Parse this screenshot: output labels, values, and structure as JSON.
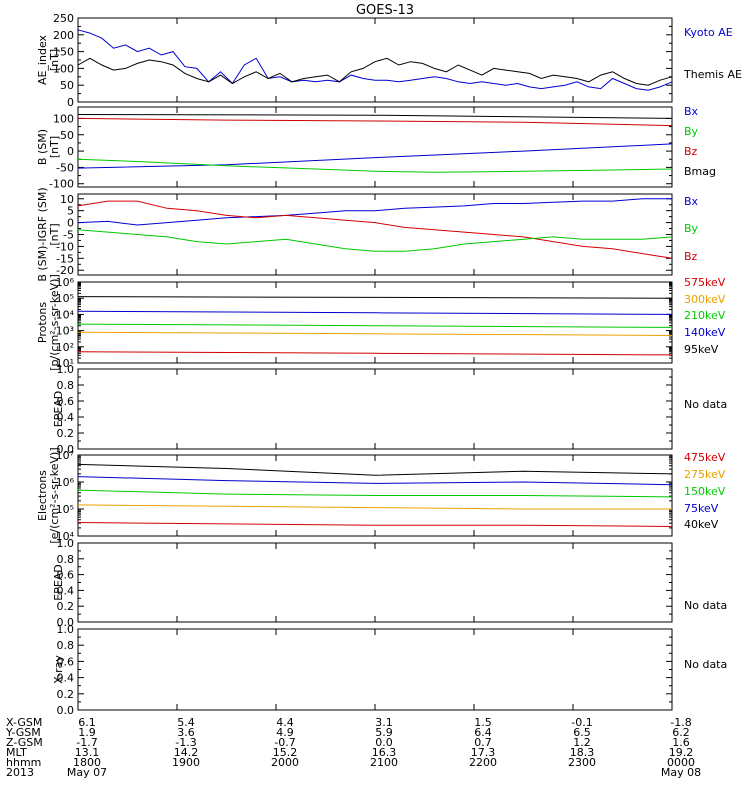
{
  "title": "GOES-13",
  "colors": {
    "black": "#000000",
    "blue": "#0000d0",
    "red": "#d00000",
    "green": "#00c800",
    "orange": "#e8a000"
  },
  "chart_data": [
    {
      "id": "ae",
      "type": "line",
      "ylabel": "AE_index\n[nT]",
      "ylim": [
        0,
        250
      ],
      "yticks": [
        "0",
        "50",
        "100",
        "150",
        "200",
        "250"
      ],
      "yvals": [
        0,
        50,
        100,
        150,
        200,
        250
      ],
      "legend": [
        {
          "name": "Kyoto AE",
          "color": "blue"
        },
        {
          "name": "Themis AE",
          "color": "black"
        }
      ],
      "series": [
        {
          "name": "Kyoto AE",
          "color": "blue",
          "x": [
            0,
            0.02,
            0.04,
            0.06,
            0.08,
            0.1,
            0.12,
            0.14,
            0.16,
            0.18,
            0.2,
            0.22,
            0.24,
            0.26,
            0.28,
            0.3,
            0.32,
            0.34,
            0.36,
            0.38,
            0.4,
            0.42,
            0.44,
            0.46,
            0.48,
            0.5,
            0.52,
            0.54,
            0.56,
            0.58,
            0.6,
            0.62,
            0.64,
            0.66,
            0.68,
            0.7,
            0.72,
            0.74,
            0.76,
            0.78,
            0.8,
            0.82,
            0.84,
            0.86,
            0.88,
            0.9,
            0.92,
            0.94,
            0.96,
            0.98,
            1.0
          ],
          "y": [
            215,
            205,
            190,
            160,
            170,
            150,
            160,
            140,
            150,
            105,
            100,
            60,
            90,
            55,
            110,
            130,
            70,
            75,
            60,
            65,
            60,
            65,
            60,
            80,
            70,
            65,
            65,
            60,
            65,
            70,
            75,
            70,
            60,
            55,
            60,
            55,
            50,
            55,
            45,
            40,
            45,
            50,
            60,
            45,
            40,
            70,
            55,
            40,
            35,
            45,
            60
          ]
        },
        {
          "name": "Themis AE",
          "color": "black",
          "x": [
            0,
            0.02,
            0.04,
            0.06,
            0.08,
            0.1,
            0.12,
            0.14,
            0.16,
            0.18,
            0.2,
            0.22,
            0.24,
            0.26,
            0.28,
            0.3,
            0.32,
            0.34,
            0.36,
            0.38,
            0.4,
            0.42,
            0.44,
            0.46,
            0.48,
            0.5,
            0.52,
            0.54,
            0.56,
            0.58,
            0.6,
            0.62,
            0.64,
            0.66,
            0.68,
            0.7,
            0.72,
            0.74,
            0.76,
            0.78,
            0.8,
            0.82,
            0.84,
            0.86,
            0.88,
            0.9,
            0.92,
            0.94,
            0.96,
            0.98,
            1.0
          ],
          "y": [
            110,
            130,
            110,
            95,
            100,
            115,
            125,
            120,
            110,
            85,
            70,
            60,
            80,
            55,
            75,
            90,
            70,
            85,
            60,
            70,
            75,
            80,
            60,
            90,
            100,
            120,
            130,
            110,
            120,
            115,
            100,
            90,
            110,
            95,
            80,
            100,
            95,
            90,
            85,
            70,
            80,
            75,
            70,
            60,
            80,
            90,
            70,
            55,
            50,
            65,
            75
          ]
        }
      ]
    },
    {
      "id": "bsm",
      "type": "line",
      "ylabel": "B (SM)\n[nT]",
      "ylim": [
        -110,
        135
      ],
      "yticks": [
        "-100",
        "-50",
        "0",
        "50",
        "100"
      ],
      "yvals": [
        -100,
        -50,
        0,
        50,
        100
      ],
      "legend": [
        {
          "name": "Bx",
          "color": "blue"
        },
        {
          "name": "By",
          "color": "green"
        },
        {
          "name": "Bz",
          "color": "red"
        },
        {
          "name": "Bmag",
          "color": "black"
        }
      ],
      "series": [
        {
          "name": "Bmag",
          "color": "black",
          "x": [
            0,
            0.5,
            1.0
          ],
          "y": [
            112,
            110,
            100
          ]
        },
        {
          "name": "Bz",
          "color": "red",
          "x": [
            0,
            0.25,
            0.5,
            0.75,
            1.0
          ],
          "y": [
            100,
            95,
            92,
            88,
            78
          ]
        },
        {
          "name": "Bx",
          "color": "blue",
          "x": [
            0,
            0.25,
            0.5,
            0.75,
            1.0
          ],
          "y": [
            -52,
            -42,
            -20,
            0,
            22
          ]
        },
        {
          "name": "By",
          "color": "green",
          "x": [
            0,
            0.1,
            0.25,
            0.4,
            0.5,
            0.6,
            0.75,
            0.9,
            1.0
          ],
          "y": [
            -25,
            -32,
            -45,
            -55,
            -62,
            -65,
            -62,
            -58,
            -55
          ]
        }
      ]
    },
    {
      "id": "bdiff",
      "type": "line",
      "ylabel": "B (SM)-IGRF (SM)\n[nT]",
      "ylim": [
        -22,
        12
      ],
      "yticks": [
        "-20",
        "-15",
        "-10",
        "-5",
        "0",
        "5",
        "10"
      ],
      "yvals": [
        -20,
        -15,
        -10,
        -5,
        0,
        5,
        10
      ],
      "legend": [
        {
          "name": "Bx",
          "color": "blue"
        },
        {
          "name": "By",
          "color": "green"
        },
        {
          "name": "Bz",
          "color": "red"
        }
      ],
      "series": [
        {
          "name": "Bx",
          "color": "blue",
          "x": [
            0,
            0.05,
            0.1,
            0.15,
            0.2,
            0.25,
            0.3,
            0.35,
            0.4,
            0.45,
            0.5,
            0.55,
            0.6,
            0.65,
            0.7,
            0.75,
            0.8,
            0.85,
            0.9,
            0.95,
            1.0
          ],
          "y": [
            0,
            0.5,
            -1,
            0,
            1,
            2,
            2.5,
            3,
            4,
            5,
            5,
            6,
            6.5,
            7,
            8,
            8,
            8.5,
            9,
            9,
            10,
            10
          ]
        },
        {
          "name": "Bz",
          "color": "red",
          "x": [
            0,
            0.05,
            0.1,
            0.15,
            0.2,
            0.25,
            0.3,
            0.35,
            0.4,
            0.45,
            0.5,
            0.55,
            0.6,
            0.65,
            0.7,
            0.75,
            0.8,
            0.85,
            0.9,
            0.95,
            1.0
          ],
          "y": [
            7,
            9,
            9,
            6,
            5,
            3,
            2,
            3,
            2,
            1,
            0,
            -2,
            -3,
            -4,
            -5,
            -6,
            -8,
            -10,
            -11,
            -13,
            -15
          ]
        },
        {
          "name": "By",
          "color": "green",
          "x": [
            0,
            0.05,
            0.1,
            0.15,
            0.2,
            0.25,
            0.3,
            0.35,
            0.4,
            0.45,
            0.5,
            0.55,
            0.6,
            0.65,
            0.7,
            0.75,
            0.8,
            0.85,
            0.9,
            0.95,
            1.0
          ],
          "y": [
            -3,
            -4,
            -5,
            -6,
            -8,
            -9,
            -8,
            -7,
            -9,
            -11,
            -12,
            -12,
            -11,
            -9,
            -8,
            -7,
            -6,
            -7,
            -7,
            -7,
            -6
          ]
        }
      ]
    },
    {
      "id": "protons",
      "type": "line",
      "scale": "log",
      "ylabel": "Protons\n[p/(cm²-s-sr-keV)]",
      "ylim": [
        1,
        6
      ],
      "yticks": [
        "10¹",
        "10²",
        "10³",
        "10⁴",
        "10⁵",
        "10⁶"
      ],
      "yvals": [
        1,
        2,
        3,
        4,
        5,
        6
      ],
      "legend": [
        {
          "name": "575keV",
          "color": "red"
        },
        {
          "name": "300keV",
          "color": "orange"
        },
        {
          "name": "210keV",
          "color": "green"
        },
        {
          "name": "140keV",
          "color": "blue"
        },
        {
          "name": "95keV",
          "color": "black"
        }
      ],
      "series": [
        {
          "name": "95keV",
          "color": "black",
          "x": [
            0,
            0.5,
            1.0
          ],
          "y": [
            5.1,
            5.05,
            5.0
          ]
        },
        {
          "name": "140keV",
          "color": "blue",
          "x": [
            0,
            0.5,
            1.0
          ],
          "y": [
            4.2,
            4.1,
            4.0
          ]
        },
        {
          "name": "210keV",
          "color": "green",
          "x": [
            0,
            0.5,
            1.0
          ],
          "y": [
            3.4,
            3.3,
            3.2
          ]
        },
        {
          "name": "300keV",
          "color": "orange",
          "x": [
            0,
            0.5,
            1.0
          ],
          "y": [
            2.9,
            2.8,
            2.7
          ]
        },
        {
          "name": "575keV",
          "color": "red",
          "x": [
            0,
            0.5,
            1.0
          ],
          "y": [
            1.7,
            1.6,
            1.5
          ]
        }
      ]
    },
    {
      "id": "epead1",
      "type": "line",
      "ylabel": "EPEAD",
      "ylim": [
        0,
        1
      ],
      "yticks": [
        "0.0",
        "0.2",
        "0.4",
        "0.6",
        "0.8",
        "1.0"
      ],
      "yvals": [
        0,
        0.2,
        0.4,
        0.6,
        0.8,
        1.0
      ],
      "legend": [
        {
          "name": "No data",
          "color": "black"
        }
      ],
      "series": []
    },
    {
      "id": "electrons",
      "type": "line",
      "scale": "log",
      "ylabel": "Electrons\n[e/(cm²-s-sr-keV)]",
      "ylim": [
        4,
        7
      ],
      "yticks": [
        "10⁴",
        "10⁵",
        "10⁶",
        "10⁷"
      ],
      "yvals": [
        4,
        5,
        6,
        7
      ],
      "legend": [
        {
          "name": "475keV",
          "color": "red"
        },
        {
          "name": "275keV",
          "color": "orange"
        },
        {
          "name": "150keV",
          "color": "green"
        },
        {
          "name": "75keV",
          "color": "blue"
        },
        {
          "name": "40keV",
          "color": "black"
        }
      ],
      "series": [
        {
          "name": "40keV",
          "color": "black",
          "x": [
            0,
            0.25,
            0.5,
            0.75,
            1.0
          ],
          "y": [
            6.65,
            6.5,
            6.25,
            6.4,
            6.3
          ]
        },
        {
          "name": "75keV",
          "color": "blue",
          "x": [
            0,
            0.25,
            0.5,
            0.75,
            1.0
          ],
          "y": [
            6.2,
            6.05,
            5.95,
            6.0,
            5.9
          ]
        },
        {
          "name": "150keV",
          "color": "green",
          "x": [
            0,
            0.25,
            0.5,
            0.75,
            1.0
          ],
          "y": [
            5.7,
            5.55,
            5.5,
            5.5,
            5.45
          ]
        },
        {
          "name": "275keV",
          "color": "orange",
          "x": [
            0,
            0.25,
            0.5,
            0.75,
            1.0
          ],
          "y": [
            5.15,
            5.1,
            5.05,
            5.0,
            5.0
          ]
        },
        {
          "name": "475keV",
          "color": "red",
          "x": [
            0,
            0.25,
            0.5,
            0.75,
            1.0
          ],
          "y": [
            4.5,
            4.45,
            4.4,
            4.4,
            4.35
          ]
        }
      ]
    },
    {
      "id": "epead2",
      "type": "line",
      "ylabel": "EPEAD",
      "ylim": [
        0,
        1
      ],
      "yticks": [
        "0.0",
        "0.2",
        "0.4",
        "0.6",
        "0.8",
        "1.0"
      ],
      "yvals": [
        0,
        0.2,
        0.4,
        0.6,
        0.8,
        1.0
      ],
      "legend": [
        {
          "name": "No data",
          "color": "black"
        }
      ],
      "series": []
    },
    {
      "id": "xray",
      "type": "line",
      "ylabel": "X-ray",
      "ylim": [
        0,
        1
      ],
      "yticks": [
        "0.0",
        "0.2",
        "0.4",
        "0.6",
        "0.8",
        "1.0"
      ],
      "yvals": [
        0,
        0.2,
        0.4,
        0.6,
        0.8,
        1.0
      ],
      "legend": [
        {
          "name": "No data",
          "color": "black"
        }
      ],
      "series": []
    }
  ],
  "xaxis": {
    "row_labels": [
      "X-GSM",
      "Y-GSM",
      "Z-GSM",
      "MLT",
      "hhmm",
      "2013"
    ],
    "columns": [
      [
        "6.1",
        "1.9",
        "-1.7",
        "13.1",
        "1800",
        "May 07"
      ],
      [
        "5.4",
        "3.6",
        "-1.3",
        "14.2",
        "1900",
        ""
      ],
      [
        "4.4",
        "4.9",
        "-0.7",
        "15.2",
        "2000",
        ""
      ],
      [
        "3.1",
        "5.9",
        "0.0",
        "16.3",
        "2100",
        ""
      ],
      [
        "1.5",
        "6.4",
        "0.7",
        "17.3",
        "2200",
        ""
      ],
      [
        "-0.1",
        "6.5",
        "1.2",
        "18.3",
        "2300",
        ""
      ],
      [
        "-1.8",
        "6.2",
        "1.6",
        "19.2",
        "0000",
        "May 08"
      ]
    ]
  }
}
